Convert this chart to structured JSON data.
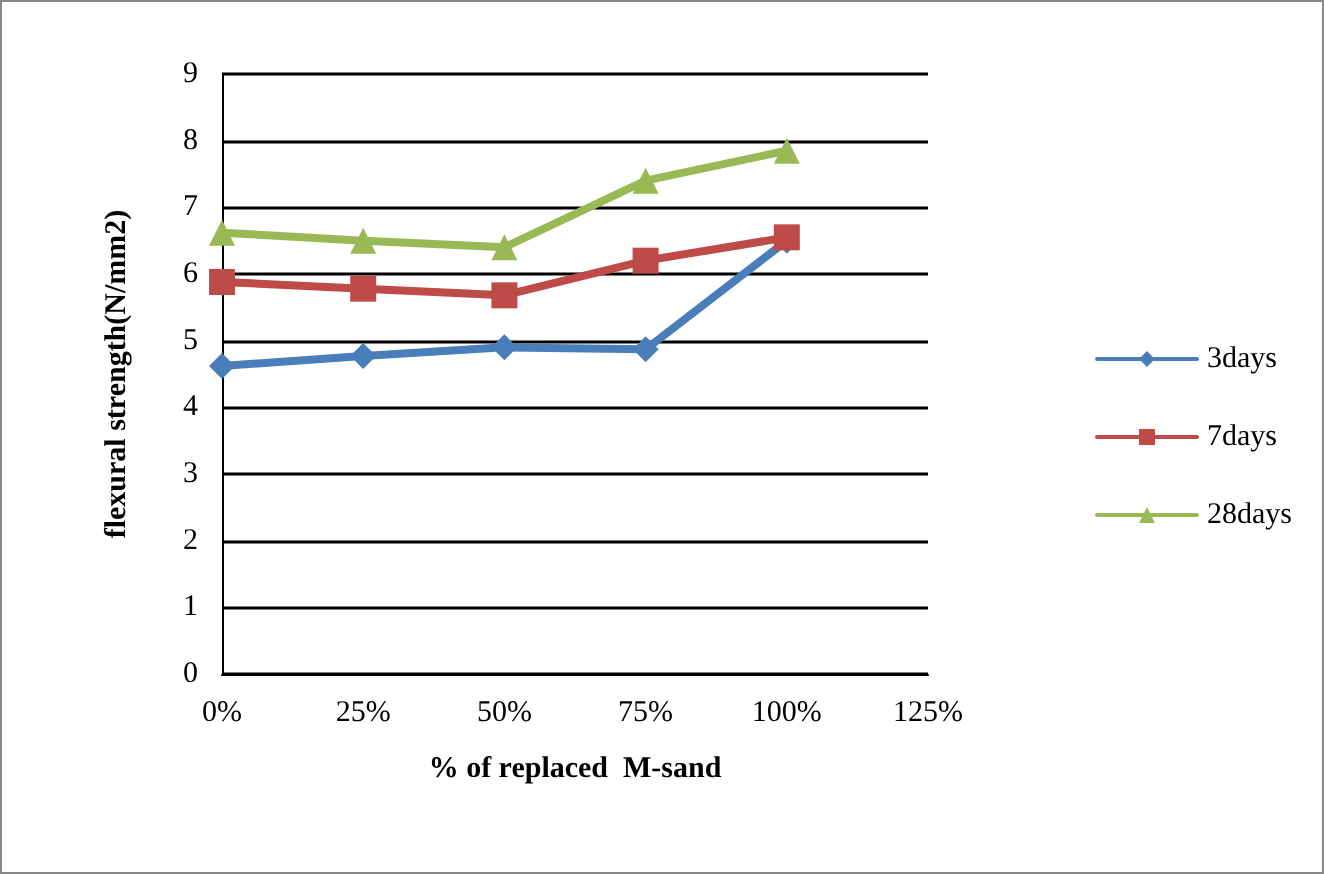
{
  "chart_data": {
    "type": "line",
    "xlabel": "% of replaced  M-sand",
    "ylabel": "flexural strength(N/mm2)",
    "x": [
      0,
      25,
      50,
      75,
      100
    ],
    "xlim": [
      0,
      125
    ],
    "xticks": [
      {
        "value": 0,
        "label": "0%"
      },
      {
        "value": 25,
        "label": "25%"
      },
      {
        "value": 50,
        "label": "50%"
      },
      {
        "value": 75,
        "label": "75%"
      },
      {
        "value": 100,
        "label": "100%"
      },
      {
        "value": 125,
        "label": "125%"
      }
    ],
    "ylim": [
      0,
      9
    ],
    "yticks": [
      0,
      1,
      2,
      3,
      4,
      5,
      6,
      7,
      8,
      9
    ],
    "grid": "y",
    "legend": "right",
    "series": [
      {
        "name": "3days",
        "color": "#4a7ebb",
        "marker": "diamond",
        "values": [
          4.62,
          4.77,
          4.9,
          4.87,
          6.5
        ]
      },
      {
        "name": "7days",
        "color": "#be4b48",
        "marker": "square",
        "values": [
          5.88,
          5.78,
          5.68,
          6.2,
          6.55
        ]
      },
      {
        "name": "28days",
        "color": "#98b954",
        "marker": "triangle",
        "values": [
          6.62,
          6.5,
          6.4,
          7.4,
          7.85
        ]
      }
    ]
  }
}
